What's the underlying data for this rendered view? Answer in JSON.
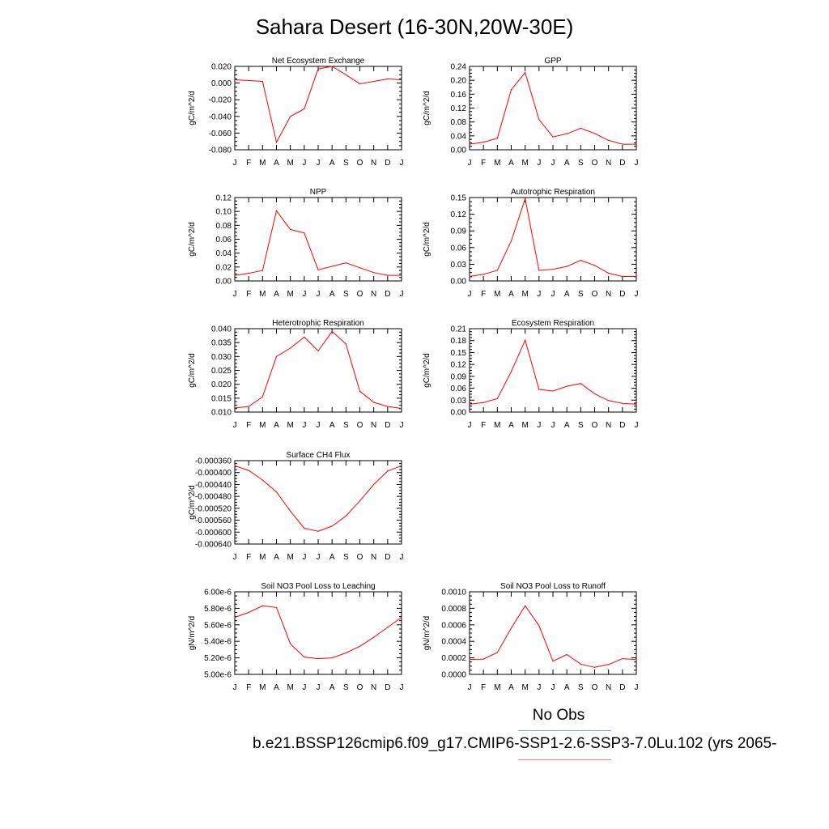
{
  "page": {
    "title": "Sahara Desert (16-30N,20W-30E)",
    "legend": {
      "obs_label": "No Obs",
      "case_label": "b.e21.BSSP126cmip6.f09_g17.CMIP6-SSP1-2.6-SSP3-7.0Lu.102 (yrs 2065-"
    },
    "colors": {
      "model_line": "#ff0000",
      "obs_line": "#8899ee",
      "axis": "#000000"
    }
  },
  "chart_data": [
    {
      "type": "line",
      "title": "Net Ecosystem Exchange",
      "ylabel": "gC/m^2/d",
      "categories": [
        "J",
        "F",
        "M",
        "A",
        "M",
        "J",
        "J",
        "A",
        "S",
        "O",
        "N",
        "D",
        "J"
      ],
      "values": [
        0.004,
        0.003,
        0.002,
        -0.071,
        -0.04,
        -0.031,
        0.017,
        0.02,
        0.01,
        -0.001,
        0.002,
        0.005,
        0.004
      ],
      "ylim": [
        -0.08,
        0.02
      ],
      "yticks": [
        "-0.080",
        "-0.060",
        "-0.040",
        "-0.020",
        "0.000",
        "0.020"
      ]
    },
    {
      "type": "line",
      "title": "GPP",
      "ylabel": "gC/m^2/d",
      "categories": [
        "J",
        "F",
        "M",
        "A",
        "M",
        "J",
        "J",
        "A",
        "S",
        "O",
        "N",
        "D",
        "J"
      ],
      "values": [
        0.016,
        0.022,
        0.033,
        0.173,
        0.222,
        0.087,
        0.037,
        0.046,
        0.062,
        0.047,
        0.027,
        0.016,
        0.016
      ],
      "ylim": [
        0.0,
        0.24
      ],
      "yticks": [
        "0.00",
        "0.04",
        "0.08",
        "0.12",
        "0.16",
        "0.20",
        "0.24"
      ]
    },
    {
      "type": "line",
      "title": "NPP",
      "ylabel": "gC/m^2/d",
      "categories": [
        "J",
        "F",
        "M",
        "A",
        "M",
        "J",
        "J",
        "A",
        "S",
        "O",
        "N",
        "D",
        "J"
      ],
      "values": [
        0.008,
        0.011,
        0.015,
        0.101,
        0.074,
        0.069,
        0.016,
        0.021,
        0.026,
        0.019,
        0.012,
        0.008,
        0.008
      ],
      "ylim": [
        0.0,
        0.12
      ],
      "yticks": [
        "0.00",
        "0.02",
        "0.04",
        "0.06",
        "0.08",
        "0.10",
        "0.12"
      ]
    },
    {
      "type": "line",
      "title": "Autotrophic Respiration",
      "ylabel": "gC/m^2/d",
      "categories": [
        "J",
        "F",
        "M",
        "A",
        "M",
        "J",
        "J",
        "A",
        "S",
        "O",
        "N",
        "D",
        "J"
      ],
      "values": [
        0.008,
        0.012,
        0.019,
        0.072,
        0.148,
        0.019,
        0.021,
        0.026,
        0.037,
        0.028,
        0.014,
        0.008,
        0.008
      ],
      "ylim": [
        0.0,
        0.15
      ],
      "yticks": [
        "0.00",
        "0.03",
        "0.06",
        "0.09",
        "0.12",
        "0.15"
      ]
    },
    {
      "type": "line",
      "title": "Heterotrophic Respiration",
      "ylabel": "gC/m^2/d",
      "categories": [
        "J",
        "F",
        "M",
        "A",
        "M",
        "J",
        "J",
        "A",
        "S",
        "O",
        "N",
        "D",
        "J"
      ],
      "values": [
        0.0115,
        0.012,
        0.0155,
        0.03,
        0.033,
        0.037,
        0.032,
        0.039,
        0.0345,
        0.0175,
        0.0135,
        0.012,
        0.0113
      ],
      "ylim": [
        0.01,
        0.04
      ],
      "yticks": [
        "0.010",
        "0.015",
        "0.020",
        "0.025",
        "0.030",
        "0.035",
        "0.040"
      ]
    },
    {
      "type": "line",
      "title": "Ecosystem Respiration",
      "ylabel": "gC/m^2/d",
      "categories": [
        "J",
        "F",
        "M",
        "A",
        "M",
        "J",
        "J",
        "A",
        "S",
        "O",
        "N",
        "D",
        "J"
      ],
      "values": [
        0.02,
        0.024,
        0.034,
        0.102,
        0.181,
        0.057,
        0.053,
        0.065,
        0.072,
        0.046,
        0.029,
        0.022,
        0.02
      ],
      "ylim": [
        0.0,
        0.21
      ],
      "yticks": [
        "0.00",
        "0.03",
        "0.06",
        "0.09",
        "0.12",
        "0.15",
        "0.18",
        "0.21"
      ]
    },
    {
      "type": "line",
      "title": "Surface CH4 Flux",
      "ylabel": "gC/m^2/d",
      "categories": [
        "J",
        "F",
        "M",
        "A",
        "M",
        "J",
        "J",
        "A",
        "S",
        "O",
        "N",
        "D",
        "J"
      ],
      "values": [
        -0.000377,
        -0.000393,
        -0.000425,
        -0.000465,
        -0.00053,
        -0.000587,
        -0.000597,
        -0.00058,
        -0.000546,
        -0.000495,
        -0.00044,
        -0.000395,
        -0.000377
      ],
      "ylim": [
        -0.00064,
        -0.00036
      ],
      "yticks": [
        "-0.000640",
        "-0.000600",
        "-0.000560",
        "-0.000520",
        "-0.000480",
        "-0.000440",
        "-0.000400",
        "-0.000360"
      ],
      "minor_yticks": [
        "-0.000620",
        "-0.000580",
        "-0.000540",
        "-0.000500",
        "-0.000460",
        "-0.000420",
        "-0.000380"
      ]
    },
    {
      "type": "line",
      "title": "Soil NO3 Pool Loss to Leaching",
      "ylabel": "gN/m^2/d",
      "categories": [
        "J",
        "F",
        "M",
        "A",
        "M",
        "J",
        "J",
        "A",
        "S",
        "O",
        "N",
        "D",
        "J"
      ],
      "values": [
        5.69e-06,
        5.75e-06,
        5.83e-06,
        5.81e-06,
        5.37e-06,
        5.21e-06,
        5.19e-06,
        5.2e-06,
        5.26e-06,
        5.34e-06,
        5.45e-06,
        5.57e-06,
        5.69e-06
      ],
      "ylim": [
        5e-06,
        6e-06
      ],
      "yticks": [
        "5.00e-6",
        "5.20e-6",
        "5.40e-6",
        "5.60e-6",
        "5.80e-6",
        "6.00e-6"
      ]
    },
    {
      "type": "line",
      "title": "Soil NO3 Pool Loss to Runoff",
      "ylabel": "gN/m^2/d",
      "categories": [
        "J",
        "F",
        "M",
        "A",
        "M",
        "J",
        "J",
        "A",
        "S",
        "O",
        "N",
        "D",
        "J"
      ],
      "values": [
        0.00018,
        0.000185,
        0.000265,
        0.00056,
        0.00083,
        0.00059,
        0.00016,
        0.00024,
        0.000125,
        8.5e-05,
        0.00012,
        0.00019,
        0.00018
      ],
      "ylim": [
        0.0,
        0.001
      ],
      "yticks": [
        "0.0000",
        "0.0002",
        "0.0004",
        "0.0006",
        "0.0008",
        "0.0010"
      ]
    }
  ]
}
